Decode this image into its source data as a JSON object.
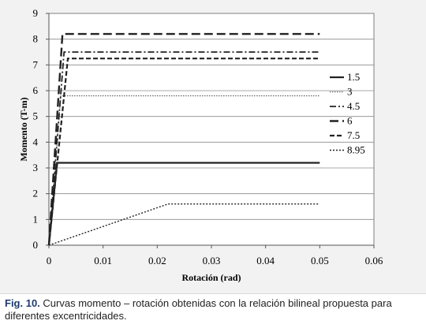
{
  "chart_data": {
    "type": "line",
    "xlabel": "Rotación (rad)",
    "ylabel": "Momento (T-m)",
    "xlim": [
      0,
      0.06
    ],
    "ylim": [
      0,
      9
    ],
    "xticks": [
      "0",
      "0.01",
      "0.02",
      "0.03",
      "0.04",
      "0.05",
      "0.06"
    ],
    "yticks": [
      "0",
      "1",
      "2",
      "3",
      "4",
      "5",
      "6",
      "7",
      "8",
      "9"
    ],
    "grid": "horizontal",
    "legend_position": "right",
    "series": [
      {
        "name": "1.5",
        "dash": "solid",
        "x": [
          0,
          0.0015,
          0.05
        ],
        "y": [
          0,
          3.2,
          3.2
        ]
      },
      {
        "name": "3",
        "dash": "dotted-light",
        "x": [
          0,
          0.0022,
          0.05
        ],
        "y": [
          0,
          5.8,
          5.8
        ]
      },
      {
        "name": "4.5",
        "dash": "dash-dot",
        "x": [
          0,
          0.0028,
          0.05
        ],
        "y": [
          0,
          7.5,
          7.5
        ]
      },
      {
        "name": "6",
        "dash": "long-dash",
        "x": [
          0,
          0.0025,
          0.05
        ],
        "y": [
          0,
          8.2,
          8.2
        ]
      },
      {
        "name": "7.5",
        "dash": "dash",
        "x": [
          0,
          0.0035,
          0.05
        ],
        "y": [
          0,
          7.25,
          7.25
        ]
      },
      {
        "name": "8.95",
        "dash": "dotted",
        "x": [
          0,
          0.022,
          0.05
        ],
        "y": [
          0,
          1.6,
          1.6
        ]
      }
    ]
  },
  "caption": {
    "label": "Fig. 10.",
    "text": " Curvas momento – rotación obtenidas con la relación bilineal propuesta para diferentes excentricidades."
  }
}
